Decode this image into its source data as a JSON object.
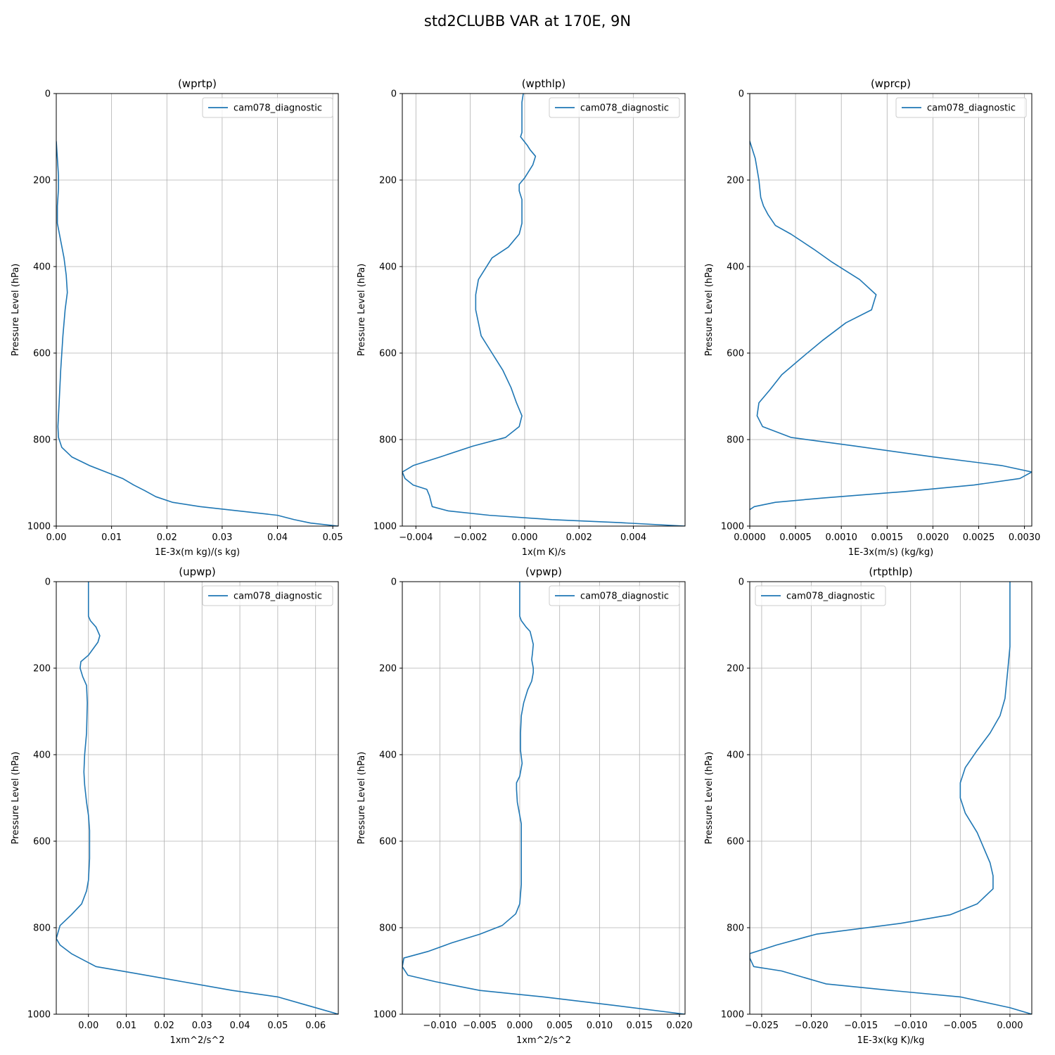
{
  "figure": {
    "suptitle": "std2CLUBB VAR at 170E, 9N"
  },
  "colors": {
    "series": "#1f77b4",
    "grid": "#b0b0b0",
    "axis": "#000000"
  },
  "chart_data": [
    {
      "type": "line",
      "title": "(wprtp)",
      "xlabel": "1E-3x(m kg)/(s kg)",
      "ylabel": "Pressure Level (hPa)",
      "xlim": [
        0,
        0.051
      ],
      "ylim": [
        1000,
        0
      ],
      "legend": "top-right",
      "grid": true,
      "xticks": [
        0,
        0.01,
        0.02,
        0.03,
        0.04,
        0.05
      ],
      "xtick_labels": [
        "0.00",
        "0.01",
        "0.02",
        "0.03",
        "0.04",
        "0.05"
      ],
      "yticks": [
        0,
        200,
        400,
        600,
        800,
        1000
      ],
      "ytick_labels": [
        "0",
        "200",
        "400",
        "600",
        "800",
        "1000"
      ],
      "series": [
        {
          "name": "cam078_diagnostic",
          "x": [
            0,
            0.0002,
            0.0004,
            0.0004,
            0.0002,
            0.0002,
            0.0008,
            0.0014,
            0.0018,
            0.002,
            0.0016,
            0.0012,
            0.0008,
            0.0005,
            0.0003,
            0.0004,
            0.001,
            0.0028,
            0.006,
            0.009,
            0.012,
            0.014,
            0.016,
            0.018,
            0.021,
            0.026,
            0.033,
            0.04,
            0.043,
            0.046,
            0.051
          ],
          "y": [
            110,
            150,
            190,
            220,
            260,
            300,
            340,
            380,
            420,
            460,
            500,
            560,
            640,
            720,
            770,
            795,
            818,
            840,
            860,
            875,
            890,
            905,
            918,
            932,
            945,
            955,
            965,
            975,
            985,
            993,
            1000
          ]
        }
      ]
    },
    {
      "type": "line",
      "title": "(wpthlp)",
      "xlabel": "1x(m K)/s",
      "ylabel": "Pressure Level (hPa)",
      "xlim": [
        -0.0045,
        0.0059
      ],
      "ylim": [
        1000,
        0
      ],
      "legend": "top-right",
      "grid": true,
      "xticks": [
        -0.004,
        -0.002,
        0,
        0.002,
        0.004
      ],
      "xtick_labels": [
        "−0.004",
        "−0.002",
        "0.000",
        "0.002",
        "0.004"
      ],
      "yticks": [
        0,
        200,
        400,
        600,
        800,
        1000
      ],
      "ytick_labels": [
        "0",
        "200",
        "400",
        "600",
        "800",
        "1000"
      ],
      "series": [
        {
          "name": "cam078_diagnostic",
          "x": [
            -5e-05,
            -0.0001,
            -0.0001,
            -0.0001,
            -0.00015,
            0.0001,
            0.0002,
            0.0004,
            0.0003,
            0,
            -0.0002,
            -0.0002,
            -0.0001,
            -0.0001,
            -0.0001,
            -0.0002,
            -0.0006,
            -0.0012,
            -0.0017,
            -0.0018,
            -0.0018,
            -0.0016,
            -0.0012,
            -0.0008,
            -0.0005,
            -0.0003,
            -0.0001,
            -0.0002,
            -0.0007,
            -0.0019,
            -0.0031,
            -0.0041,
            -0.0045,
            -0.0044,
            -0.0041,
            -0.0036,
            -0.0035,
            -0.0034,
            -0.0028,
            -0.0013,
            0.001,
            0.0035,
            0.0059
          ],
          "y": [
            0,
            20,
            60,
            90,
            100,
            120,
            130,
            145,
            165,
            195,
            210,
            225,
            245,
            265,
            300,
            325,
            355,
            380,
            430,
            465,
            500,
            560,
            600,
            640,
            680,
            715,
            745,
            770,
            795,
            815,
            840,
            860,
            875,
            890,
            905,
            915,
            930,
            955,
            965,
            975,
            985,
            992,
            1000
          ]
        }
      ]
    },
    {
      "type": "line",
      "title": "(wprcp)",
      "xlabel": "1E-3x(m/s) (kg/kg)",
      "ylabel": "Pressure Level (hPa)",
      "xlim": [
        0,
        0.00308
      ],
      "ylim": [
        1000,
        0
      ],
      "legend": "top-right",
      "grid": true,
      "xticks": [
        0,
        0.0005,
        0.001,
        0.0015,
        0.002,
        0.0025,
        0.003
      ],
      "xtick_labels": [
        "0.0000",
        "0.0005",
        "0.0010",
        "0.0015",
        "0.0020",
        "0.0025",
        "0.0030"
      ],
      "yticks": [
        0,
        200,
        400,
        600,
        800,
        1000
      ],
      "ytick_labels": [
        "0",
        "200",
        "400",
        "600",
        "800",
        "1000"
      ],
      "series": [
        {
          "name": "cam078_diagnostic",
          "x": [
            0,
            3e-05,
            6e-05,
            8e-05,
            0.0001,
            0.00012,
            0.00015,
            0.0002,
            0.00028,
            0.00045,
            0.0007,
            0.0009,
            0.0012,
            0.00138,
            0.00133,
            0.00105,
            0.0008,
            0.0006,
            0.00035,
            0.00022,
            0.0001,
            8e-05,
            0.00014,
            0.00045,
            0.00115,
            0.002,
            0.00275,
            0.00308,
            0.00295,
            0.00245,
            0.0017,
            0.0008,
            0.00028,
            5e-05,
            0
          ],
          "y": [
            110,
            130,
            150,
            175,
            200,
            240,
            260,
            280,
            305,
            325,
            360,
            390,
            430,
            465,
            500,
            530,
            570,
            605,
            650,
            685,
            715,
            745,
            770,
            795,
            815,
            840,
            860,
            875,
            890,
            905,
            920,
            935,
            945,
            955,
            962
          ]
        }
      ]
    },
    {
      "type": "line",
      "title": "(upwp)",
      "xlabel": "1xm^2/s^2",
      "ylabel": "Pressure Level (hPa)",
      "xlim": [
        -0.0085,
        0.066
      ],
      "ylim": [
        1000,
        0
      ],
      "legend": "top-right",
      "grid": true,
      "xticks": [
        0,
        0.01,
        0.02,
        0.03,
        0.04,
        0.05,
        0.06
      ],
      "xtick_labels": [
        "0.00",
        "0.01",
        "0.02",
        "0.03",
        "0.04",
        "0.05",
        "0.06"
      ],
      "yticks": [
        0,
        200,
        400,
        600,
        800,
        1000
      ],
      "ytick_labels": [
        "0",
        "200",
        "400",
        "600",
        "800",
        "1000"
      ],
      "series": [
        {
          "name": "cam078_diagnostic",
          "x": [
            0,
            0,
            0,
            0.0005,
            0.002,
            0.003,
            0.0025,
            0,
            -0.002,
            -0.0022,
            -0.0015,
            -0.0005,
            -0.0003,
            -0.0005,
            -0.001,
            -0.0012,
            -0.001,
            -0.0005,
            0,
            0.0003,
            0.0003,
            0,
            -0.0005,
            -0.0018,
            -0.0045,
            -0.0075,
            -0.0085,
            -0.0075,
            -0.0045,
            0.002,
            0.012,
            0.025,
            0.038,
            0.05,
            0.058,
            0.066
          ],
          "y": [
            0,
            40,
            80,
            90,
            105,
            125,
            140,
            170,
            185,
            200,
            220,
            240,
            280,
            350,
            400,
            440,
            470,
            510,
            540,
            575,
            640,
            690,
            715,
            745,
            770,
            795,
            825,
            840,
            860,
            890,
            905,
            925,
            945,
            960,
            980,
            1000
          ]
        }
      ]
    },
    {
      "type": "line",
      "title": "(vpwp)",
      "xlabel": "1xm^2/s^2",
      "ylabel": "Pressure Level (hPa)",
      "xlim": [
        -0.0147,
        0.0207
      ],
      "ylim": [
        1000,
        0
      ],
      "legend": "top-right",
      "grid": true,
      "xticks": [
        -0.01,
        -0.005,
        0,
        0.005,
        0.01,
        0.015,
        0.02
      ],
      "xtick_labels": [
        "−0.010",
        "−0.005",
        "0.000",
        "0.005",
        "0.010",
        "0.015",
        "0.020"
      ],
      "yticks": [
        0,
        200,
        400,
        600,
        800,
        1000
      ],
      "ytick_labels": [
        "0",
        "200",
        "400",
        "600",
        "800",
        "1000"
      ],
      "series": [
        {
          "name": "cam078_diagnostic",
          "x": [
            0,
            0,
            0,
            0.0002,
            0.0008,
            0.0013,
            0.0015,
            0.0017,
            0.0016,
            0.0015,
            0.0017,
            0.0017,
            0.0015,
            0.001,
            0.0005,
            0.0002,
            0.0001,
            0.0001,
            0.0002,
            0.0003,
            0,
            -0.0004,
            -0.0004,
            -0.0003,
            0.0002,
            0.0002,
            0.0002,
            0.0002,
            0,
            -0.0005,
            -0.0022,
            -0.005,
            -0.0085,
            -0.0115,
            -0.0145,
            -0.0147,
            -0.014,
            -0.0105,
            -0.005,
            0.003,
            0.012,
            0.0207
          ],
          "y": [
            0,
            40,
            80,
            90,
            105,
            115,
            130,
            145,
            165,
            180,
            200,
            210,
            230,
            250,
            280,
            310,
            350,
            390,
            405,
            420,
            450,
            465,
            480,
            510,
            560,
            600,
            640,
            700,
            745,
            768,
            795,
            815,
            835,
            855,
            870,
            890,
            910,
            925,
            945,
            960,
            980,
            1000
          ]
        }
      ]
    },
    {
      "type": "line",
      "title": "(rtpthlp)",
      "xlabel": "1E-3x(kg K)/kg",
      "ylabel": "Pressure Level (hPa)",
      "xlim": [
        -0.0262,
        0.0022
      ],
      "ylim": [
        1000,
        0
      ],
      "legend": "top-left",
      "grid": true,
      "xticks": [
        -0.025,
        -0.02,
        -0.015,
        -0.01,
        -0.005,
        0
      ],
      "xtick_labels": [
        "−0.025",
        "−0.020",
        "−0.015",
        "−0.010",
        "−0.005",
        "0.000"
      ],
      "yticks": [
        0,
        200,
        400,
        600,
        800,
        1000
      ],
      "ytick_labels": [
        "0",
        "200",
        "400",
        "600",
        "800",
        "1000"
      ],
      "series": [
        {
          "name": "cam078_diagnostic",
          "x": [
            0,
            0,
            0,
            -0.0002,
            -0.0005,
            -0.001,
            -0.002,
            -0.0033,
            -0.0045,
            -0.005,
            -0.005,
            -0.0045,
            -0.0033,
            -0.002,
            -0.0017,
            -0.0017,
            -0.0033,
            -0.006,
            -0.011,
            -0.0195,
            -0.0235,
            -0.0262,
            -0.0262,
            -0.0258,
            -0.023,
            -0.0185,
            -0.012,
            -0.005,
            0,
            0.0022
          ],
          "y": [
            0,
            100,
            150,
            200,
            270,
            310,
            350,
            390,
            430,
            465,
            500,
            535,
            580,
            650,
            680,
            710,
            745,
            770,
            790,
            815,
            840,
            860,
            870,
            890,
            900,
            930,
            945,
            960,
            985,
            1000
          ]
        }
      ]
    }
  ]
}
